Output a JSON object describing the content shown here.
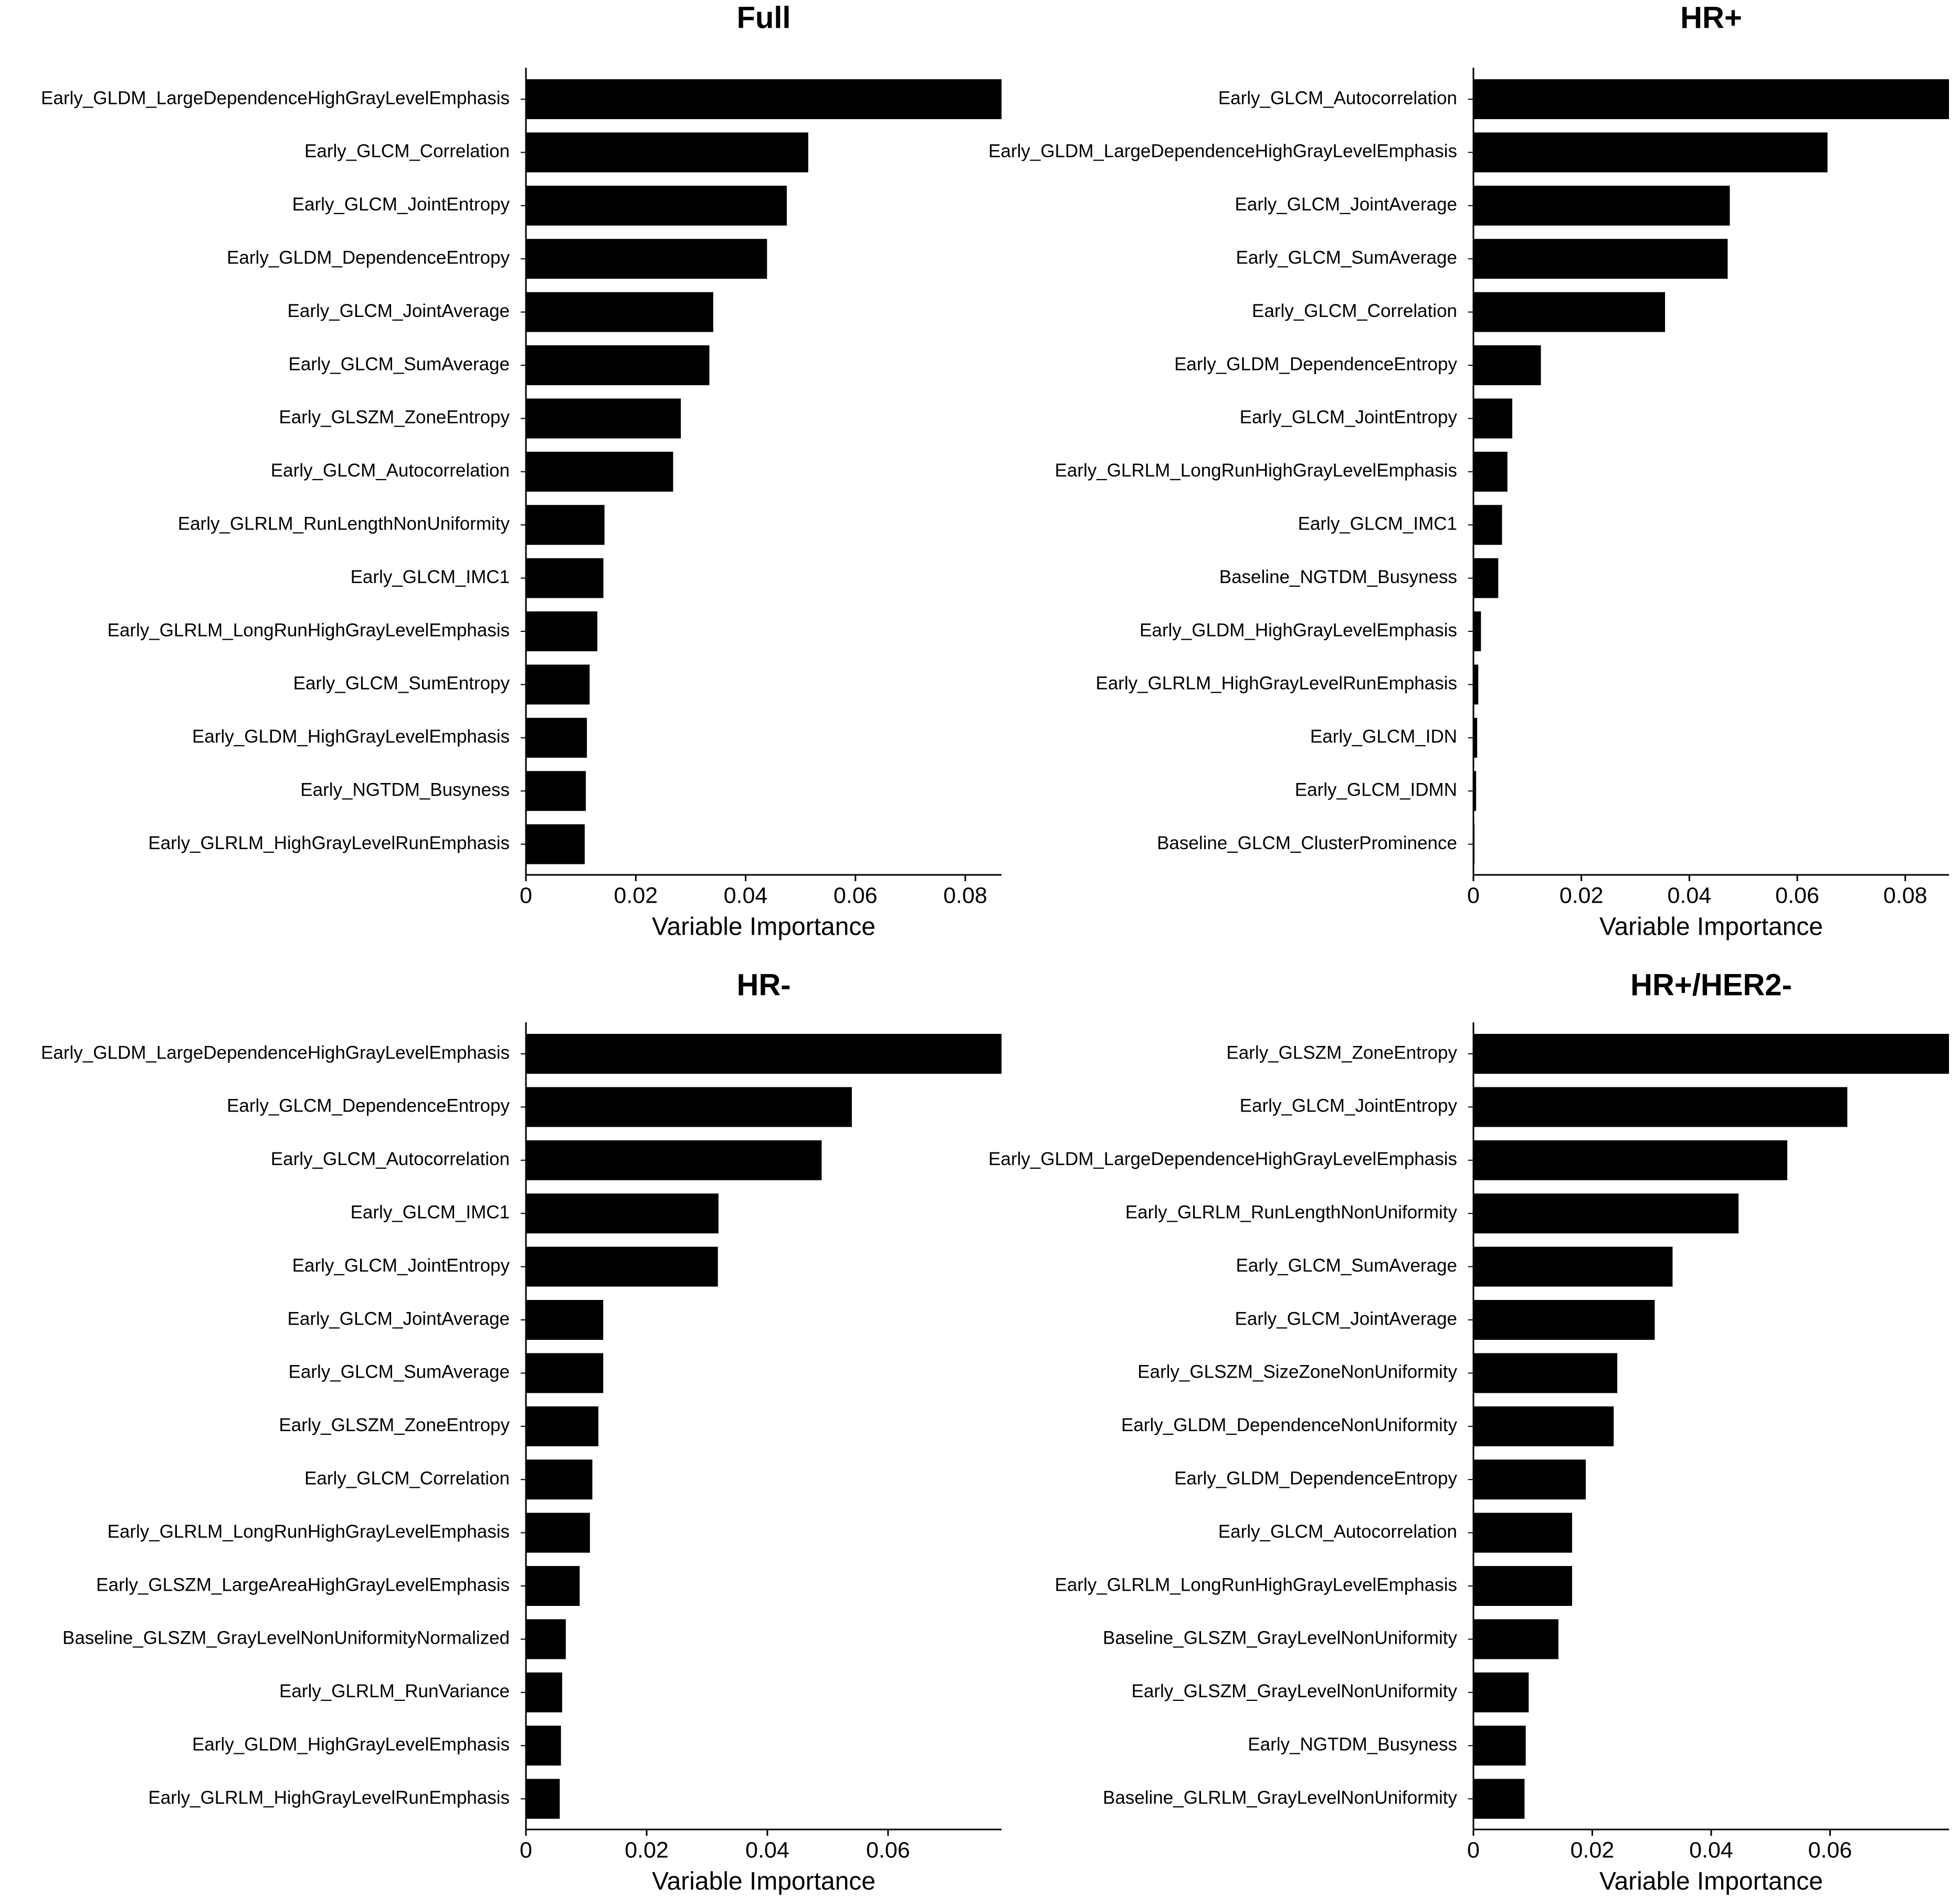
{
  "chart_data": [
    {
      "type": "barh",
      "title": "Full",
      "xlabel": "Variable Importance",
      "color": "#000000",
      "categories": [
        "Early_GLDM_LargeDependenceHighGrayLevelEmphasis",
        "Early_GLCM_Correlation",
        "Early_GLCM_JointEntropy",
        "Early_GLDM_DependenceEntropy",
        "Early_GLCM_JointAverage",
        "Early_GLCM_SumAverage",
        "Early_GLSZM_ZoneEntropy",
        "Early_GLCM_Autocorrelation",
        "Early_GLRLM_RunLengthNonUniformity",
        "Early_GLCM_IMC1",
        "Early_GLRLM_LongRunHighGrayLevelEmphasis",
        "Early_GLCM_SumEntropy",
        "Early_GLDM_HighGrayLevelEmphasis",
        "Early_NGTDM_Busyness",
        "Early_GLRLM_HighGrayLevelRunEmphasis"
      ],
      "values": [
        0.0866,
        0.0514,
        0.0475,
        0.0439,
        0.0341,
        0.0334,
        0.0282,
        0.0268,
        0.0143,
        0.0141,
        0.013,
        0.0116,
        0.0111,
        0.0109,
        0.0107
      ],
      "xlim": [
        0,
        0.0866
      ],
      "xticks": [
        0,
        0.02,
        0.04,
        0.06,
        0.08
      ]
    },
    {
      "type": "barh",
      "title": "HR+",
      "xlabel": "Variable Importance",
      "color": "#000000",
      "categories": [
        "Early_GLCM_Autocorrelation",
        "Early_GLDM_LargeDependenceHighGrayLevelEmphasis",
        "Early_GLCM_JointAverage",
        "Early_GLCM_SumAverage",
        "Early_GLCM_Correlation",
        "Early_GLDM_DependenceEntropy",
        "Early_GLCM_JointEntropy",
        "Early_GLRLM_LongRunHighGrayLevelEmphasis",
        "Early_GLCM_IMC1",
        "Baseline_NGTDM_Busyness",
        "Early_GLDM_HighGrayLevelEmphasis",
        "Early_GLRLM_HighGrayLevelRunEmphasis",
        "Early_GLCM_IDN",
        "Early_GLCM_IDMN",
        "Baseline_GLCM_ClusterProminence"
      ],
      "values": [
        0.0881,
        0.0656,
        0.0475,
        0.0471,
        0.0355,
        0.0125,
        0.0072,
        0.0063,
        0.0053,
        0.0046,
        0.0014,
        0.0009,
        0.0007,
        0.0005,
        0.0002
      ],
      "xlim": [
        0,
        0.0881
      ],
      "xticks": [
        0,
        0.02,
        0.04,
        0.06,
        0.08
      ]
    },
    {
      "type": "barh",
      "title": "HR-",
      "xlabel": "Variable Importance",
      "color": "#000000",
      "categories": [
        "Early_GLDM_LargeDependenceHighGrayLevelEmphasis",
        "Early_GLCM_DependenceEntropy",
        "Early_GLCM_Autocorrelation",
        "Early_GLCM_IMC1",
        "Early_GLCM_JointEntropy",
        "Early_GLCM_JointAverage",
        "Early_GLCM_SumAverage",
        "Early_GLSZM_ZoneEntropy",
        "Early_GLCM_Correlation",
        "Early_GLRLM_LongRunHighGrayLevelEmphasis",
        "Early_GLSZM_LargeAreaHighGrayLevelEmphasis",
        "Baseline_GLSZM_GrayLevelNonUniformityNormalized",
        "Early_GLRLM_RunVariance",
        "Early_GLDM_HighGrayLevelEmphasis",
        "Early_GLRLM_HighGrayLevelRunEmphasis"
      ],
      "values": [
        0.0788,
        0.054,
        0.049,
        0.0319,
        0.0318,
        0.0128,
        0.0128,
        0.012,
        0.011,
        0.0106,
        0.0089,
        0.0066,
        0.006,
        0.0058,
        0.0056
      ],
      "xlim": [
        0,
        0.0788
      ],
      "xticks": [
        0,
        0.02,
        0.04,
        0.06
      ]
    },
    {
      "type": "barh",
      "title": "HR+/HER2-",
      "xlabel": "Variable Importance",
      "color": "#000000",
      "categories": [
        "Early_GLSZM_ZoneEntropy",
        "Early_GLCM_JointEntropy",
        "Early_GLDM_LargeDependenceHighGrayLevelEmphasis",
        "Early_GLRLM_RunLengthNonUniformity",
        "Early_GLCM_SumAverage",
        "Early_GLCM_JointAverage",
        "Early_GLSZM_SizeZoneNonUniformity",
        "Early_GLDM_DependenceNonUniformity",
        "Early_GLDM_DependenceEntropy",
        "Early_GLCM_Autocorrelation",
        "Early_GLRLM_LongRunHighGrayLevelEmphasis",
        "Baseline_GLSZM_GrayLevelNonUniformity",
        "Early_GLSZM_GrayLevelNonUniformity",
        "Early_NGTDM_Busyness",
        "Baseline_GLRLM_GrayLevelNonUniformity"
      ],
      "values": [
        0.08,
        0.0629,
        0.0528,
        0.0446,
        0.0335,
        0.0305,
        0.0242,
        0.0236,
        0.0189,
        0.0166,
        0.0166,
        0.0143,
        0.0093,
        0.0088,
        0.0086
      ],
      "xlim": [
        0,
        0.08
      ],
      "xticks": [
        0,
        0.02,
        0.04,
        0.06
      ]
    }
  ]
}
